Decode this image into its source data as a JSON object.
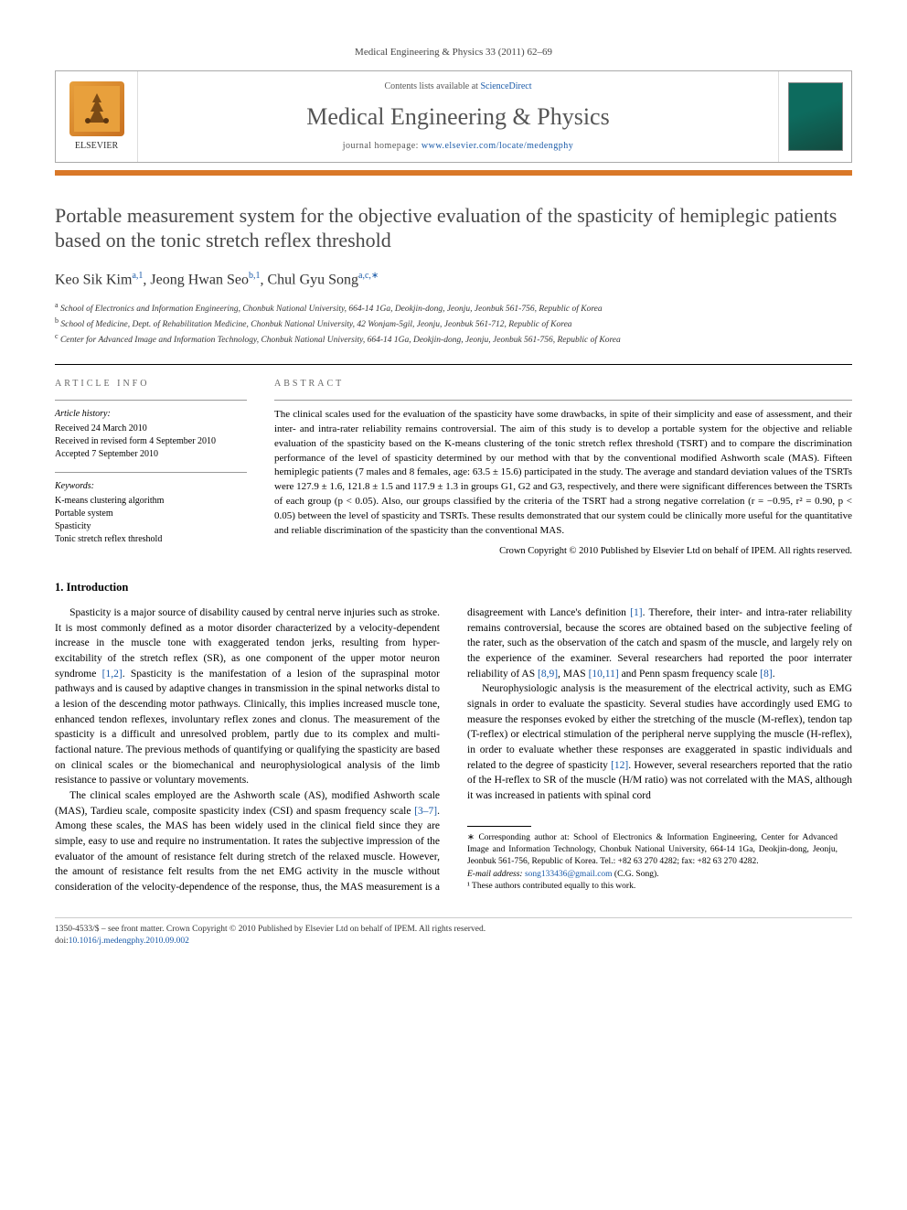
{
  "top_citation": "Medical Engineering & Physics 33 (2011) 62–69",
  "header": {
    "contents_prefix": "Contents lists available at ",
    "contents_link": "ScienceDirect",
    "journal_title": "Medical Engineering & Physics",
    "homepage_prefix": "journal homepage: ",
    "homepage_link": "www.elsevier.com/locate/medengphy",
    "publisher": "ELSEVIER"
  },
  "article_title": "Portable measurement system for the objective evaluation of the spasticity of hemiplegic patients based on the tonic stretch reflex threshold",
  "authors_html": "Keo Sik Kim<sup>a,1</sup>, Jeong Hwan Seo<sup>b,1</sup>, Chul Gyu Song<sup>a,c,∗</sup>",
  "affiliations": [
    "a School of Electronics and Information Engineering, Chonbuk National University, 664-14 1Ga, Deokjin-dong, Jeonju, Jeonbuk 561-756, Republic of Korea",
    "b School of Medicine, Dept. of Rehabilitation Medicine, Chonbuk National University, 42 Wonjam-5gil, Jeonju, Jeonbuk 561-712, Republic of Korea",
    "c Center for Advanced Image and Information Technology, Chonbuk National University, 664-14 1Ga, Deokjin-dong, Jeonju, Jeonbuk 561-756, Republic of Korea"
  ],
  "article_info": {
    "heading": "article info",
    "history_title": "Article history:",
    "history": [
      "Received 24 March 2010",
      "Received in revised form 4 September 2010",
      "Accepted 7 September 2010"
    ],
    "keywords_title": "Keywords:",
    "keywords": [
      "K-means clustering algorithm",
      "Portable system",
      "Spasticity",
      "Tonic stretch reflex threshold"
    ]
  },
  "abstract": {
    "heading": "abstract",
    "text": "The clinical scales used for the evaluation of the spasticity have some drawbacks, in spite of their simplicity and ease of assessment, and their inter- and intra-rater reliability remains controversial. The aim of this study is to develop a portable system for the objective and reliable evaluation of the spasticity based on the K-means clustering of the tonic stretch reflex threshold (TSRT) and to compare the discrimination performance of the level of spasticity determined by our method with that by the conventional modified Ashworth scale (MAS). Fifteen hemiplegic patients (7 males and 8 females, age: 63.5 ± 15.6) participated in the study. The average and standard deviation values of the TSRTs were 127.9 ± 1.6, 121.8 ± 1.5 and 117.9 ± 1.3 in groups G1, G2 and G3, respectively, and there were significant differences between the TSRTs of each group (p < 0.05). Also, our groups classified by the criteria of the TSRT had a strong negative correlation (r = −0.95, r² = 0.90, p < 0.05) between the level of spasticity and TSRTs. These results demonstrated that our system could be clinically more useful for the quantitative and reliable discrimination of the spasticity than the conventional MAS.",
    "copyright": "Crown Copyright © 2010 Published by Elsevier Ltd on behalf of IPEM. All rights reserved."
  },
  "section1": {
    "heading": "1. Introduction",
    "p1": "Spasticity is a major source of disability caused by central nerve injuries such as stroke. It is most commonly defined as a motor disorder characterized by a velocity-dependent increase in the muscle tone with exaggerated tendon jerks, resulting from hyper-excitability of the stretch reflex (SR), as one component of the upper motor neuron syndrome [1,2]. Spasticity is the manifestation of a lesion of the supraspinal motor pathways and is caused by adaptive changes in transmission in the spinal networks distal to a lesion of the descending motor pathways. Clinically, this implies increased muscle tone, enhanced tendon reflexes, involuntary reflex zones and clonus. The measurement of the spasticity is a difficult and unresolved problem, partly due to its complex and multi-factional nature. The previous methods of quantifying or qualifying the spasticity are based on clinical scales or the biomechanical and neurophysiological analysis of the limb resistance to passive or voluntary movements.",
    "p2": "The clinical scales employed are the Ashworth scale (AS), modified Ashworth scale (MAS), Tardieu scale, composite spasticity index (CSI) and spasm frequency scale [3–7]. Among these scales, the MAS has been widely used in the clinical field since they are simple, easy to use and require no instrumentation. It rates the subjective impression of the evaluator of the amount of resistance felt during stretch of the relaxed muscle. However, the amount of resistance felt results from the net EMG activity in the muscle without consideration of the velocity-dependence of the response, thus, the MAS measurement is a disagreement with Lance's definition [1]. Therefore, their inter- and intra-rater reliability remains controversial, because the scores are obtained based on the subjective feeling of the rater, such as the observation of the catch and spasm of the muscle, and largely rely on the experience of the examiner. Several researchers had reported the poor interrater reliability of AS [8,9], MAS [10,11] and Penn spasm frequency scale [8].",
    "p3": "Neurophysiologic analysis is the measurement of the electrical activity, such as EMG signals in order to evaluate the spasticity. Several studies have accordingly used EMG to measure the responses evoked by either the stretching of the muscle (M-reflex), tendon tap (T-reflex) or electrical stimulation of the peripheral nerve supplying the muscle (H-reflex), in order to evaluate whether these responses are exaggerated in spastic individuals and related to the degree of spasticity [12]. However, several researchers reported that the ratio of the H-reflex to SR of the muscle (H/M ratio) was not correlated with the MAS, although it was increased in patients with spinal cord"
  },
  "footnotes": {
    "corresponding": "∗ Corresponding author at: School of Electronics & Information Engineering, Center for Advanced Image and Information Technology, Chonbuk National University, 664-14 1Ga, Deokjin-dong, Jeonju, Jeonbuk 561-756, Republic of Korea. Tel.: +82 63 270 4282; fax: +82 63 270 4282.",
    "email_label": "E-mail address: ",
    "email": "song133436@gmail.com",
    "email_suffix": " (C.G. Song).",
    "equal": "¹ These authors contributed equally to this work."
  },
  "bottom": {
    "line1": "1350-4533/$ – see front matter. Crown Copyright © 2010 Published by Elsevier Ltd on behalf of IPEM. All rights reserved.",
    "doi_label": "doi:",
    "doi": "10.1016/j.medengphy.2010.09.002"
  },
  "colors": {
    "link": "#1a5aa8",
    "orange_rule": "#d97828",
    "title_gray": "#484848",
    "cover_bg": "#0d6b5e"
  }
}
